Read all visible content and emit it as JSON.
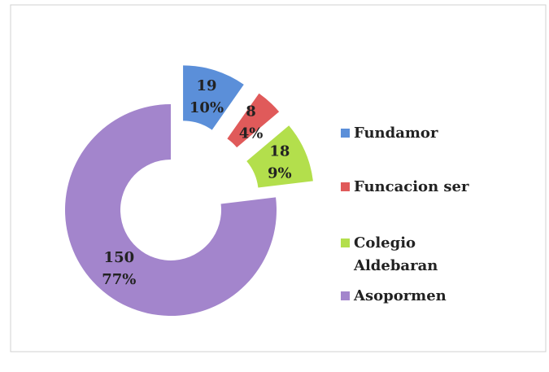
{
  "chart_data": {
    "type": "donut",
    "categories": [
      "Fundamor",
      "Funcacion ser",
      "Colegio Aldebaran",
      "Asopormen"
    ],
    "values": [
      19,
      8,
      18,
      150
    ],
    "percent_labels": [
      "10%",
      "4%",
      "9%",
      "77%"
    ],
    "colors": [
      "#5b8fd9",
      "#e05a5a",
      "#b3df4c",
      "#a385cc"
    ],
    "exploded": [
      true,
      true,
      true,
      false
    ],
    "legend": "right"
  }
}
